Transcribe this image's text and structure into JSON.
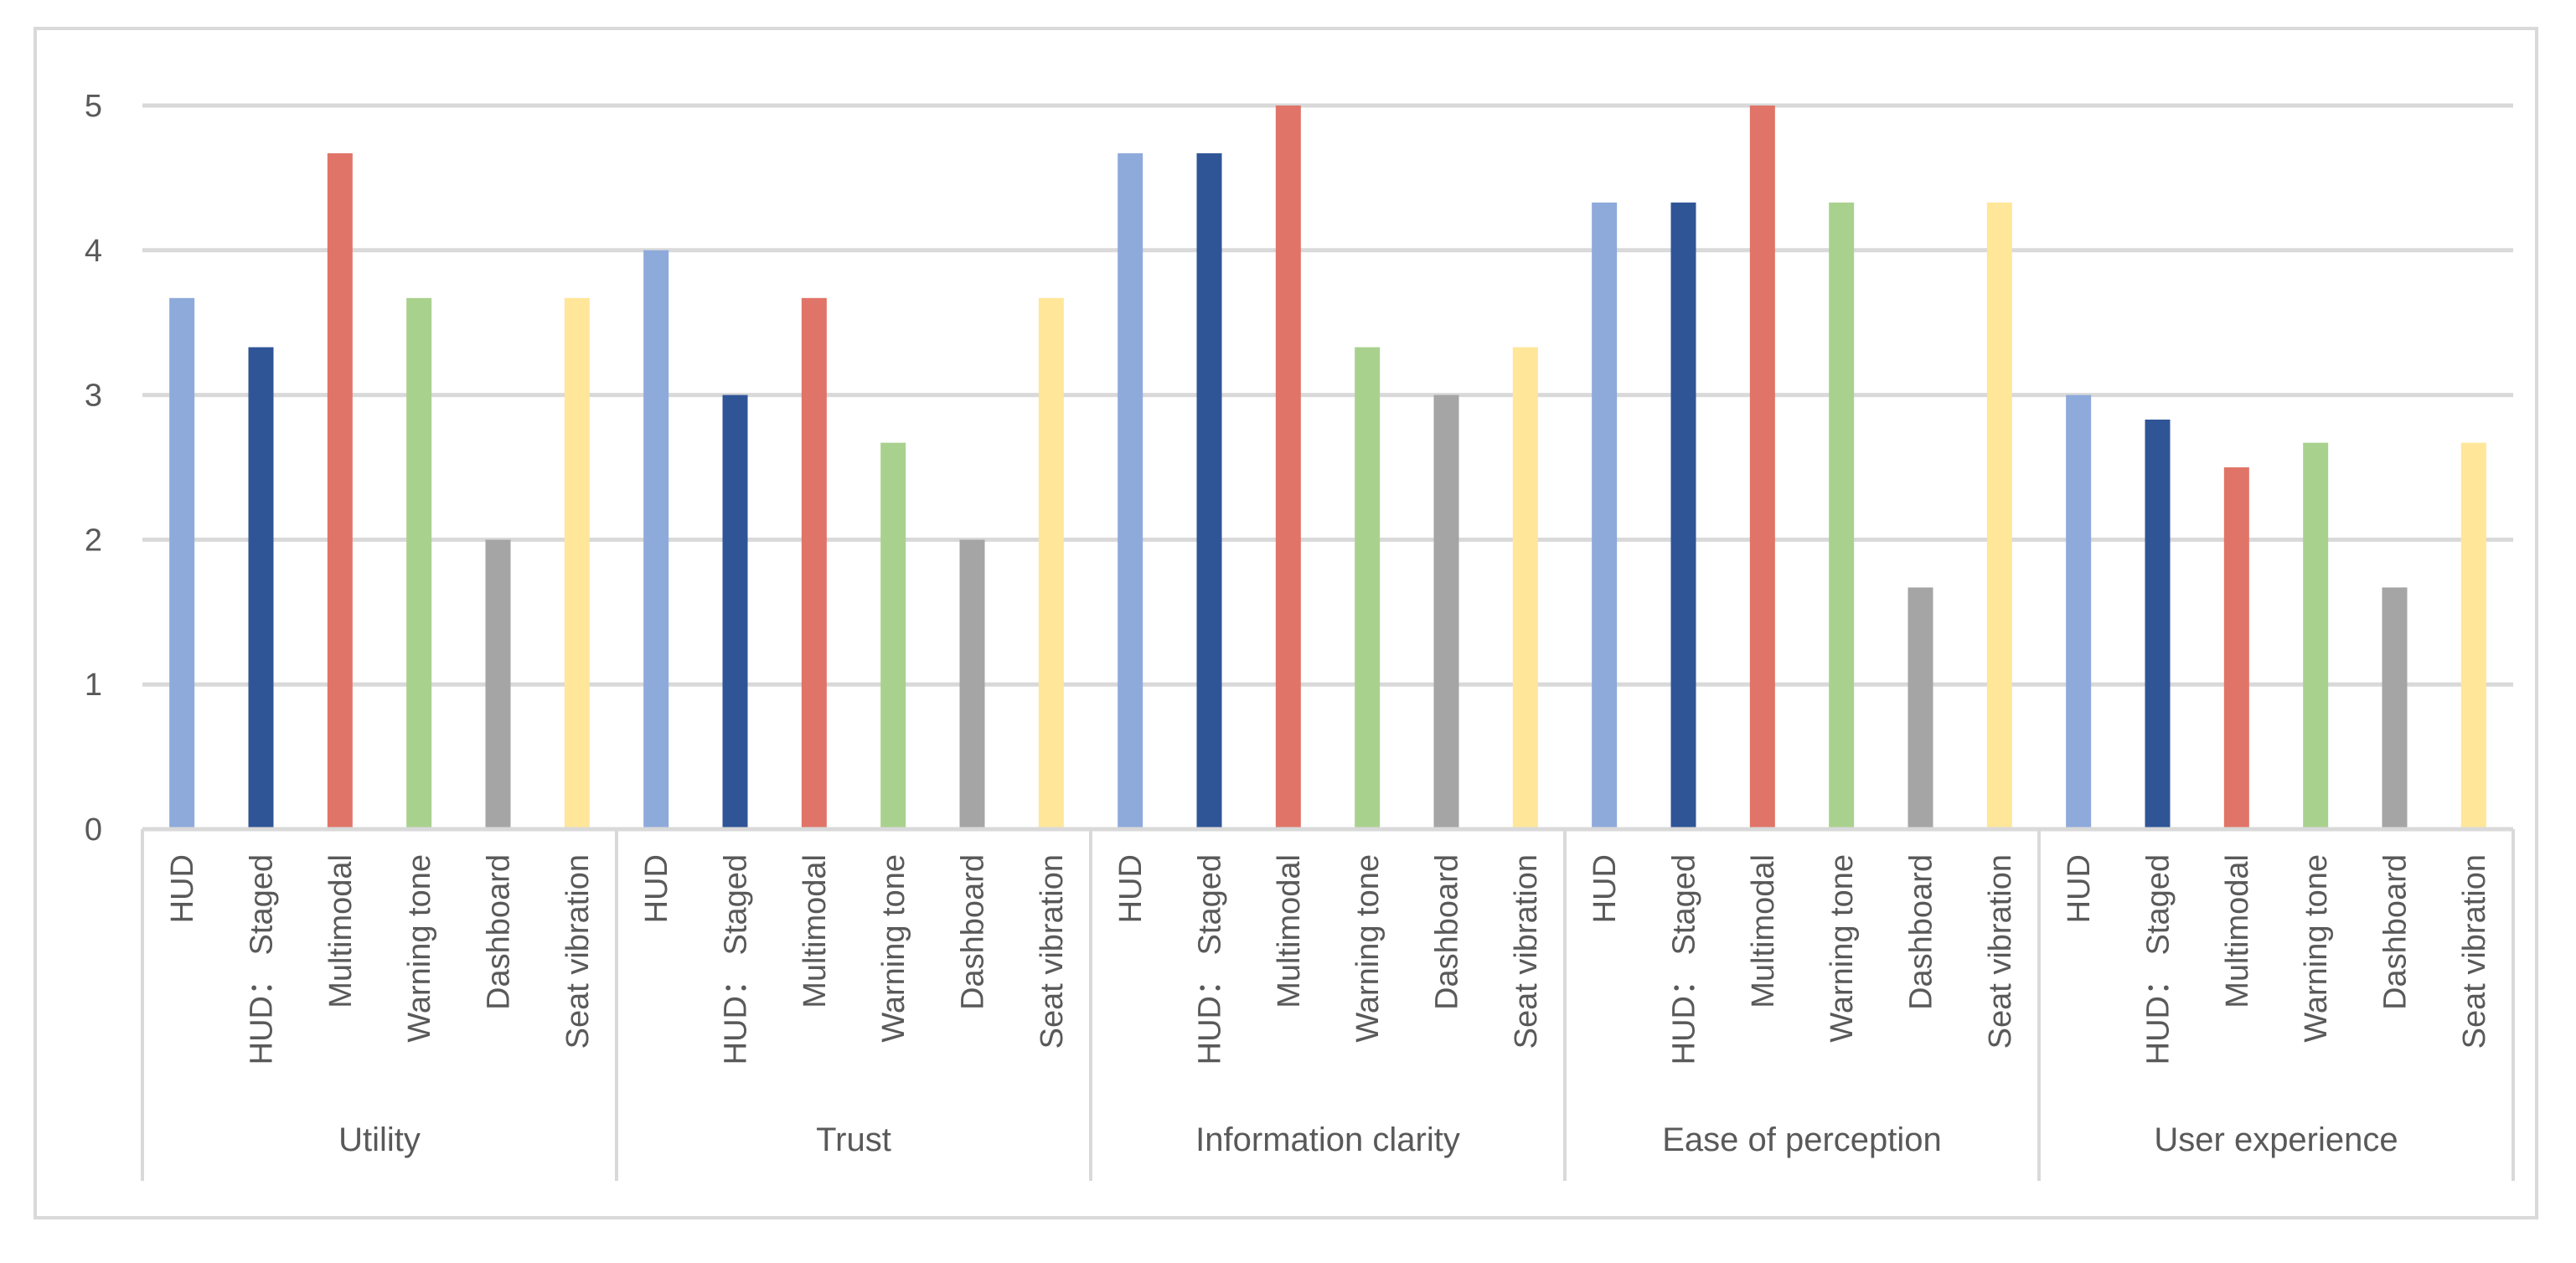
{
  "chart_data": {
    "type": "bar",
    "title": "",
    "xlabel": "",
    "ylabel": "",
    "ylim": [
      0,
      5
    ],
    "y_ticks": [
      "0",
      "1",
      "2",
      "3",
      "4",
      "5"
    ],
    "grid": true,
    "legend": "none",
    "series_colors": {
      "HUD": "#8eaadb",
      "HUD： Staged": "#2f5597",
      "Multimodal": "#e07468",
      "Warning tone": "#a9d18e",
      "Dashboard": "#a5a5a5",
      "Seat vibration": "#ffe699"
    },
    "groups": [
      {
        "name": "Utility",
        "categories": [
          "HUD",
          "HUD： Staged",
          "Multimodal",
          "Warning tone",
          "Dashboard",
          "Seat vibration"
        ],
        "values": [
          3.67,
          3.33,
          4.67,
          3.67,
          2.0,
          3.67
        ]
      },
      {
        "name": "Trust",
        "categories": [
          "HUD",
          "HUD： Staged",
          "Multimodal",
          "Warning tone",
          "Dashboard",
          "Seat vibration"
        ],
        "values": [
          4.0,
          3.0,
          3.67,
          2.67,
          2.0,
          3.67
        ]
      },
      {
        "name": "Information clarity",
        "categories": [
          "HUD",
          "HUD： Staged",
          "Multimodal",
          "Warning tone",
          "Dashboard",
          "Seat vibration"
        ],
        "values": [
          4.67,
          4.67,
          5.0,
          3.33,
          3.0,
          3.33
        ]
      },
      {
        "name": "Ease of perception",
        "categories": [
          "HUD",
          "HUD： Staged",
          "Multimodal",
          "Warning tone",
          "Dashboard",
          "Seat vibration"
        ],
        "values": [
          4.33,
          4.33,
          5.0,
          4.33,
          1.67,
          4.33
        ]
      },
      {
        "name": "User experience",
        "categories": [
          "HUD",
          "HUD： Staged",
          "Multimodal",
          "Warning tone",
          "Dashboard",
          "Seat vibration"
        ],
        "values": [
          3.0,
          2.83,
          2.5,
          2.67,
          1.67,
          2.67
        ]
      }
    ]
  }
}
